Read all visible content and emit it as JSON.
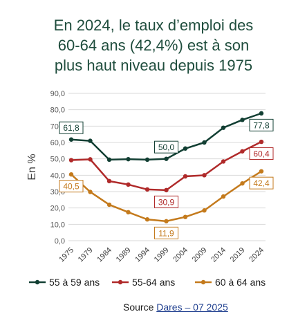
{
  "title_lines": [
    "En 2024, le taux d’emploi des",
    "60-64 ans (42,4%) est à son",
    "plus haut niveau depuis 1975"
  ],
  "source": {
    "prefix": "Source ",
    "link": "Dares – 07 2025"
  },
  "chart_data": {
    "type": "line",
    "title": "En 2024, le taux d’emploi des 60-64 ans (42,4%) est à son plus haut niveau depuis 1975",
    "xlabel": "",
    "ylabel": "En %",
    "categories": [
      "1975",
      "1979",
      "1984",
      "1989",
      "1994",
      "1999",
      "2004",
      "2009",
      "2014",
      "2019",
      "2024"
    ],
    "ylim": [
      0,
      90
    ],
    "yticks": [
      "0,0",
      "10,0",
      "20,0",
      "30,0",
      "40,0",
      "50,0",
      "60,0",
      "70,0",
      "80,0",
      "90,0"
    ],
    "grid": true,
    "legend": "bottom",
    "series": [
      {
        "name": "55 à 59 ans",
        "color": "#123f33",
        "values": [
          61.8,
          61.0,
          49.5,
          49.8,
          49.5,
          50.0,
          56.3,
          60.0,
          69.0,
          73.8,
          77.8
        ],
        "labels": [
          {
            "index": 0,
            "text": "61,8",
            "pos": "above"
          },
          {
            "index": 5,
            "text": "50,0",
            "pos": "above"
          },
          {
            "index": 10,
            "text": "77,8",
            "pos": "below"
          }
        ]
      },
      {
        "name": "55-64 ans",
        "color": "#b02a2a",
        "values": [
          49.2,
          49.7,
          36.4,
          34.3,
          31.3,
          30.9,
          39.3,
          40.0,
          48.4,
          54.6,
          60.4
        ],
        "labels": [
          {
            "index": 5,
            "text": "30,9",
            "pos": "below"
          },
          {
            "index": 10,
            "text": "60,4",
            "pos": "below"
          }
        ]
      },
      {
        "name": "60 à 64 ans",
        "color": "#c47a1c",
        "values": [
          40.5,
          29.8,
          22.0,
          17.4,
          13.0,
          11.9,
          14.5,
          18.5,
          27.0,
          35.0,
          42.4
        ],
        "labels": [
          {
            "index": 0,
            "text": "40,5",
            "pos": "below"
          },
          {
            "index": 5,
            "text": "11,9",
            "pos": "below"
          },
          {
            "index": 10,
            "text": "42,4",
            "pos": "below"
          }
        ]
      }
    ]
  }
}
